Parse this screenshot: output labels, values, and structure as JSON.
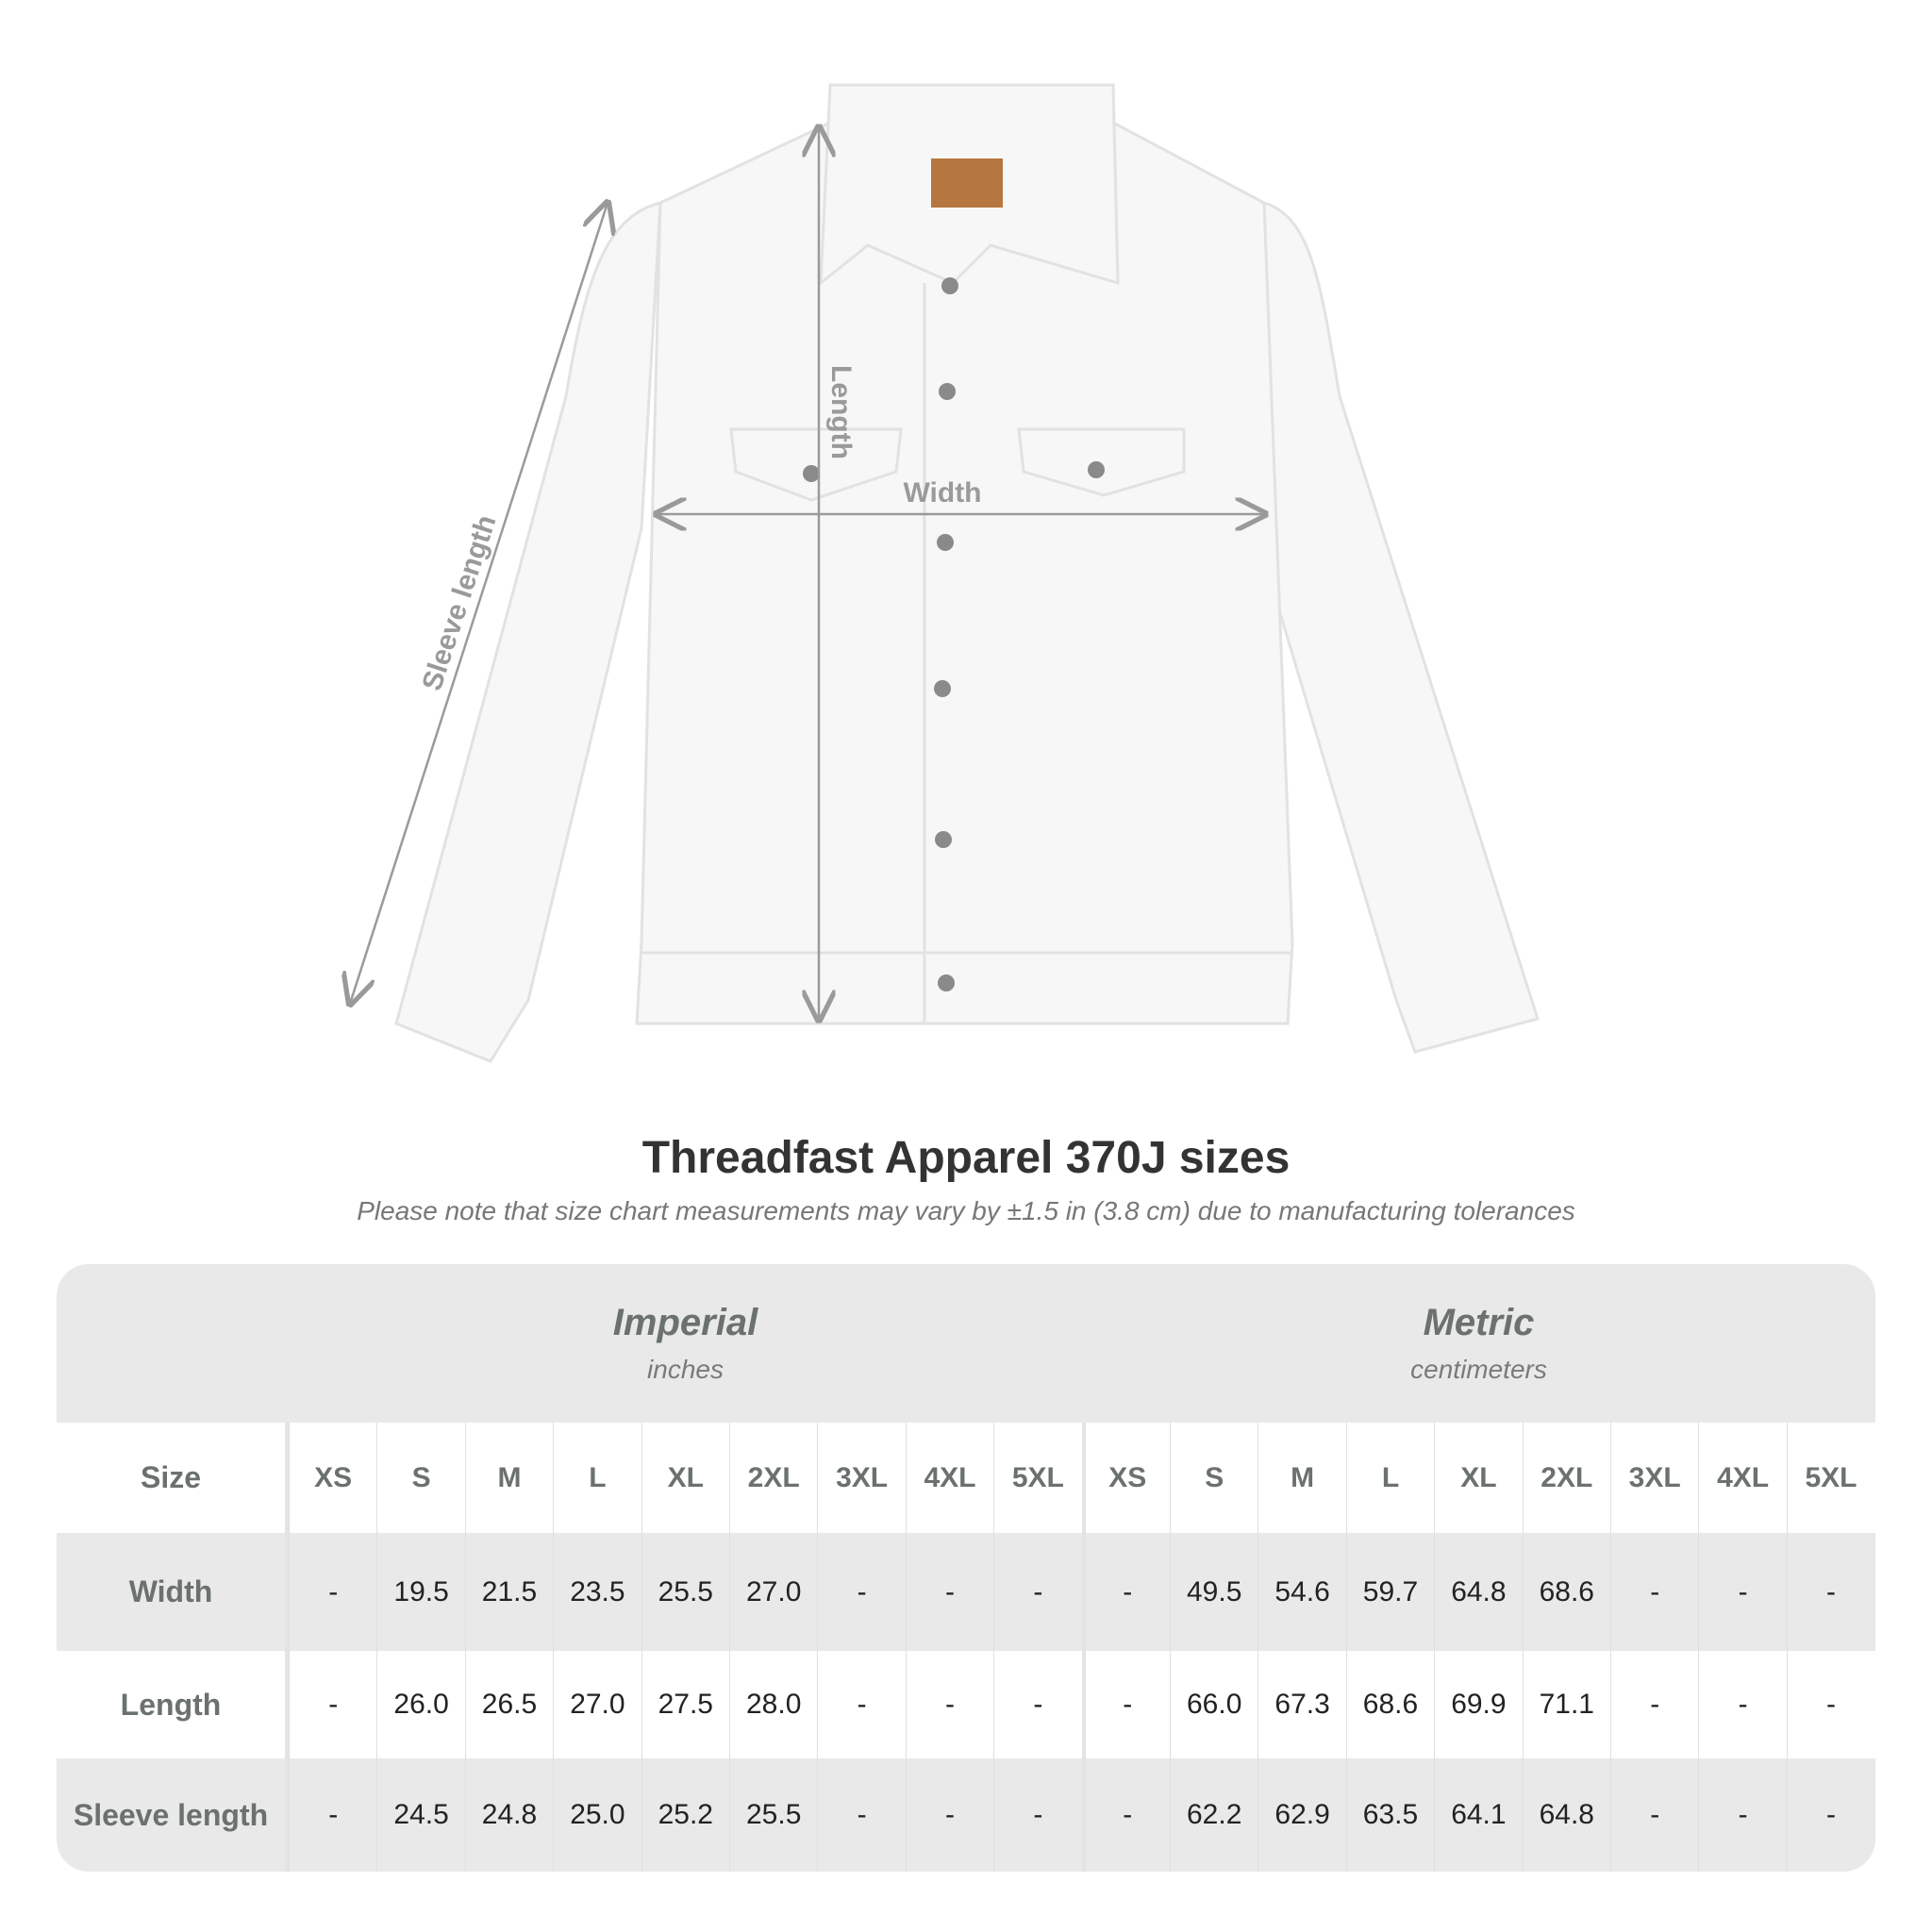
{
  "diagram": {
    "measure_labels": {
      "length": "Length",
      "width": "Width",
      "sleeve": "Sleeve length"
    }
  },
  "title": "Threadfast Apparel 370J sizes",
  "subtitle": "Please note that size chart measurements may vary by ±1.5 in (3.8 cm) due to manufacturing tolerances",
  "table": {
    "groups": [
      {
        "name": "Imperial",
        "unit": "inches"
      },
      {
        "name": "Metric",
        "unit": "centimeters"
      }
    ],
    "size_label": "Size",
    "sizes": [
      "XS",
      "S",
      "M",
      "L",
      "XL",
      "2XL",
      "3XL",
      "4XL",
      "5XL"
    ],
    "rows": [
      {
        "label": "Width",
        "imperial": [
          "-",
          "19.5",
          "21.5",
          "23.5",
          "25.5",
          "27.0",
          "-",
          "-",
          "-"
        ],
        "metric": [
          "-",
          "49.5",
          "54.6",
          "59.7",
          "64.8",
          "68.6",
          "-",
          "-",
          "-"
        ]
      },
      {
        "label": "Length",
        "imperial": [
          "-",
          "26.0",
          "26.5",
          "27.0",
          "27.5",
          "28.0",
          "-",
          "-",
          "-"
        ],
        "metric": [
          "-",
          "66.0",
          "67.3",
          "68.6",
          "69.9",
          "71.1",
          "-",
          "-",
          "-"
        ]
      },
      {
        "label": "Sleeve length",
        "imperial": [
          "-",
          "24.5",
          "24.8",
          "25.0",
          "25.2",
          "25.5",
          "-",
          "-",
          "-"
        ],
        "metric": [
          "-",
          "62.2",
          "62.9",
          "63.5",
          "64.1",
          "64.8",
          "-",
          "-",
          "-"
        ]
      }
    ]
  },
  "colors": {
    "header_bg": "#e9e9e9",
    "label_text": "#6b7070",
    "value_text": "#222222",
    "arrow": "#9a9a9a",
    "jacket": "#f7f7f7",
    "patch": "#b5773f"
  }
}
